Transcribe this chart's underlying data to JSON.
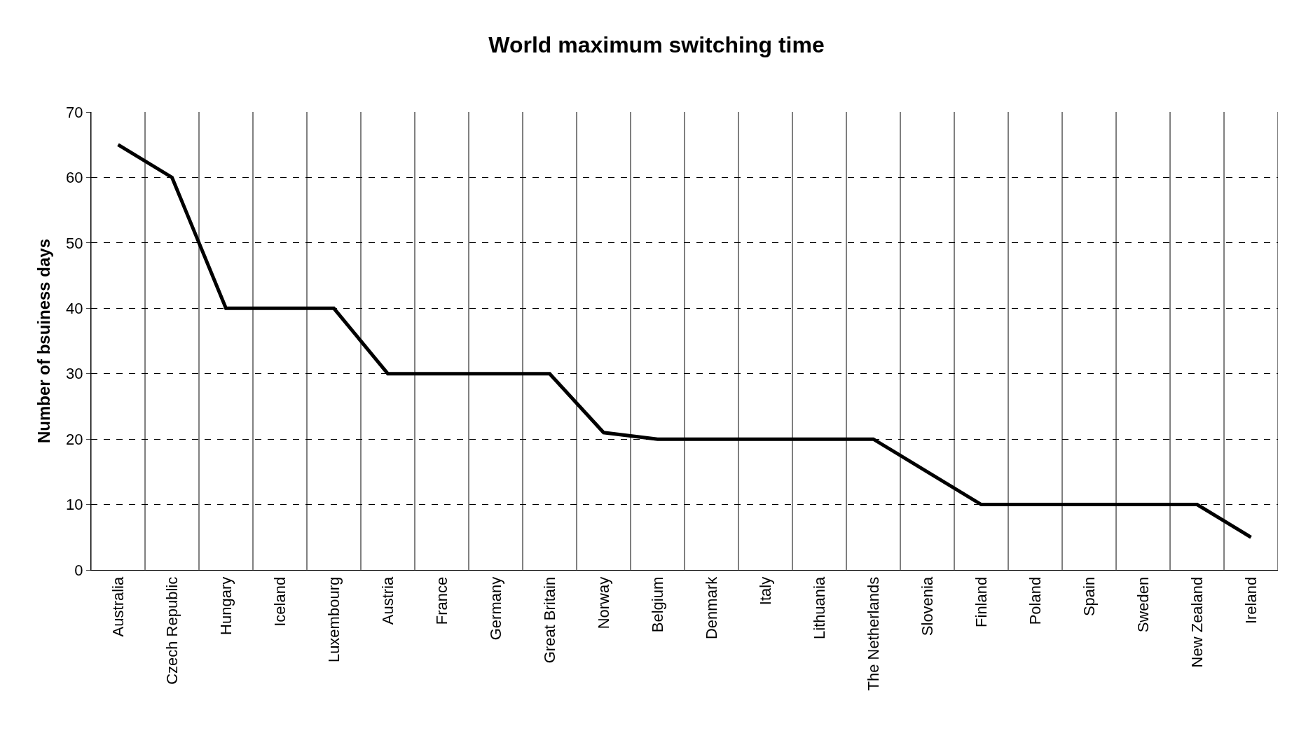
{
  "chart_data": {
    "type": "line",
    "title": "World maximum switching time",
    "ylabel": "Number of bsuiness days",
    "categories": [
      "Australia",
      "Czech Republic",
      "Hungary",
      "Iceland",
      "Luxembourg",
      "Austria",
      "France",
      "Germany",
      "Great Britain",
      "Norway",
      "Belgium",
      "Denmark",
      "Italy",
      "Lithuania",
      "The Netherlands",
      "Slovenia",
      "Finland",
      "Poland",
      "Spain",
      "Sweden",
      "New Zealand",
      "Ireland"
    ],
    "series": [
      {
        "color": "#000000",
        "values": [
          65,
          60,
          40,
          40,
          40,
          30,
          30,
          30,
          30,
          21,
          20,
          20,
          20,
          20,
          20,
          15,
          10,
          10,
          10,
          10,
          10,
          5
        ]
      }
    ],
    "ylim": [
      0,
      70
    ],
    "yticks": [
      0,
      10,
      20,
      30,
      40,
      50,
      60,
      70
    ],
    "grid": true,
    "legend": false,
    "marker": "none",
    "line_style": "solid"
  }
}
